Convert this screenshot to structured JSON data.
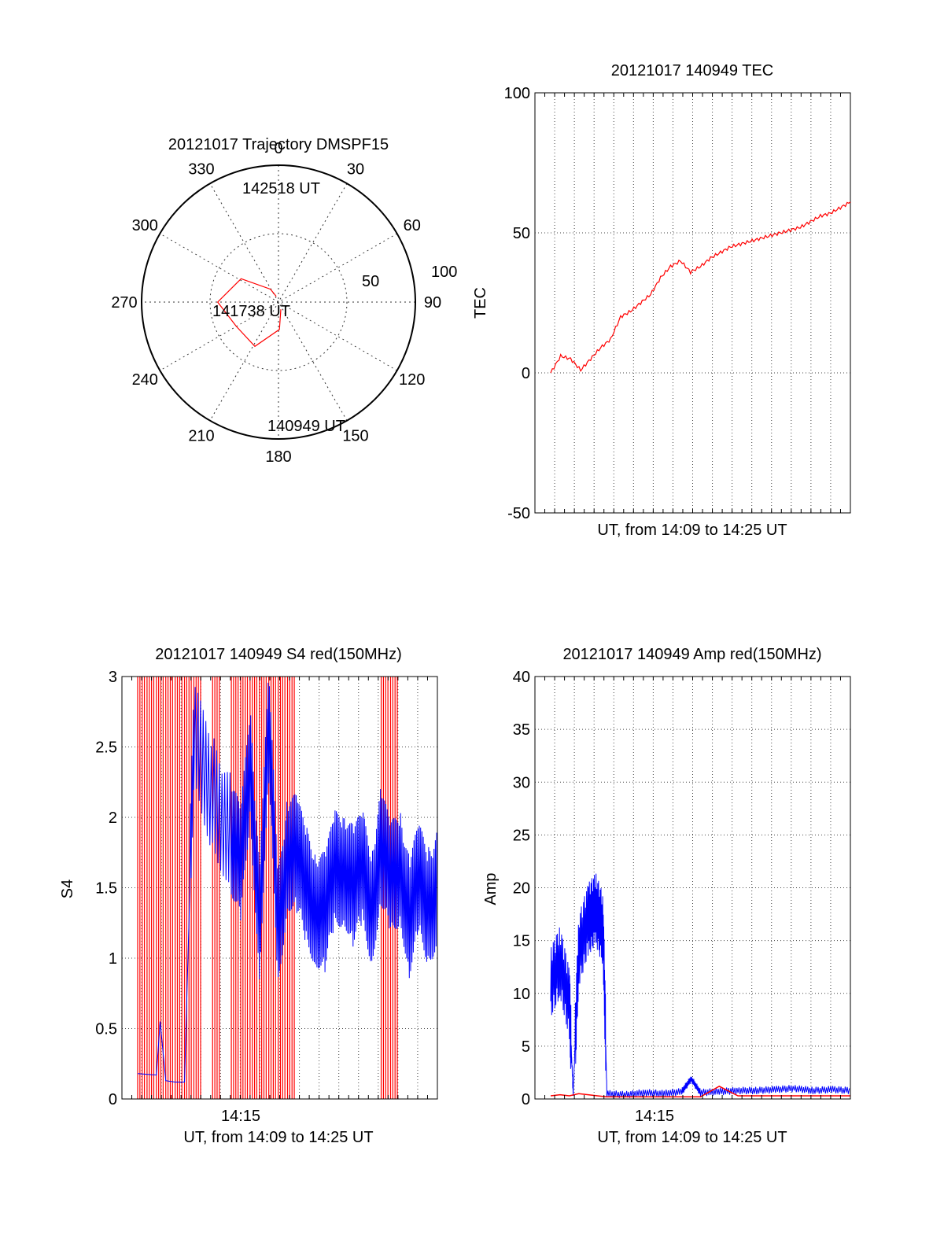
{
  "colors": {
    "red": "#ff0000",
    "blue": "#0000ff",
    "black": "#000000",
    "grid": "#333333"
  },
  "chart_data": [
    {
      "type": "polar",
      "title": "20121017 Trajectory DMSPF15",
      "angle_labels": [
        "0",
        "30",
        "60",
        "90",
        "120",
        "150",
        "180",
        "210",
        "240",
        "270",
        "300",
        "330"
      ],
      "radial_ticks": [
        "50",
        "100"
      ],
      "radial_range": [
        0,
        100
      ],
      "grid": true,
      "series": [
        {
          "color": "red",
          "points": [
            [
              162,
              85
            ],
            [
              178,
              72
            ],
            [
              208,
              57
            ],
            [
              240,
              58
            ],
            [
              270,
              50
            ],
            [
              302,
              61
            ],
            [
              328,
              80
            ],
            [
              339,
              86
            ]
          ]
        }
      ],
      "annotations": [
        "142518 UT",
        "141738 UT",
        "140949 UT"
      ]
    },
    {
      "type": "line",
      "title": "20121017 140949 TEC",
      "xlabel": "UT, from 14:09 to 14:25 UT",
      "ylabel": "TEC",
      "ylim": [
        -50,
        100
      ],
      "yticks": [
        "-50",
        "0",
        "50",
        "100"
      ],
      "grid": true,
      "series": [
        {
          "color": "red",
          "x": [
            0.0,
            0.5,
            1.0,
            1.5,
            2.0,
            2.5,
            3.0,
            3.5,
            4.0,
            4.5,
            5.0,
            5.5,
            6.0,
            6.5,
            7.0,
            7.5,
            8.0,
            8.5,
            9.0,
            9.5,
            10.0,
            10.5,
            11.0,
            11.5,
            12.0,
            12.5,
            13.0,
            13.5,
            14.0,
            14.5,
            15.0
          ],
          "y": [
            0,
            6,
            5,
            1,
            5,
            9,
            12,
            20,
            22,
            25,
            28,
            34,
            38,
            40,
            36,
            38,
            41,
            43,
            45,
            46,
            47,
            48,
            49,
            50,
            51,
            52,
            54,
            56,
            57,
            59,
            61
          ]
        }
      ]
    },
    {
      "type": "line",
      "title": "20121017 140949 S4 red(150MHz)",
      "xlabel": "UT, from 14:09 to 14:25 UT",
      "ylabel": "S4",
      "ylim": [
        0,
        3
      ],
      "yticks": [
        "0",
        "0.5",
        "1",
        "1.5",
        "2",
        "2.5",
        "3"
      ],
      "xticks": [
        "14:15"
      ],
      "grid": true,
      "series": [
        {
          "color": "red",
          "x": [
            0.0,
            0.5,
            1.0,
            1.5,
            2.0,
            2.5,
            3.0,
            4.0,
            5.0,
            5.5,
            6.0,
            6.5,
            7.0,
            7.5,
            8.0,
            13.0,
            13.5
          ],
          "y": [
            3,
            3,
            3,
            3,
            3,
            3,
            3,
            3,
            3,
            3,
            3,
            3,
            3,
            3,
            3,
            3,
            3
          ]
        },
        {
          "color": "blue",
          "x": [
            0.0,
            1.0,
            1.2,
            1.5,
            2.0,
            2.5,
            3.0,
            4.0,
            5.0,
            5.5,
            6.0,
            6.5,
            7.0,
            7.5,
            8.0,
            8.5,
            9.0,
            9.5,
            10.0,
            10.5,
            11.0,
            11.5,
            12.0,
            12.5,
            13.0,
            13.5,
            14.0,
            14.5,
            15.0,
            15.5,
            16.0
          ],
          "y": [
            0.18,
            0.17,
            0.55,
            0.13,
            0.12,
            0.12,
            2.5,
            2.2,
            1.9,
            1.6,
            2.4,
            1.3,
            2.6,
            1.2,
            1.8,
            1.7,
            1.5,
            1.4,
            1.3,
            1.6,
            1.7,
            1.5,
            1.6,
            1.4,
            1.8,
            1.5,
            1.7,
            1.3,
            1.5,
            1.4,
            1.5
          ]
        }
      ]
    },
    {
      "type": "line",
      "title": "20121017 140949 Amp red(150MHz)",
      "xlabel": "UT, from 14:09 to 14:25 UT",
      "ylabel": "Amp",
      "ylim": [
        0,
        40
      ],
      "yticks": [
        "0",
        "5",
        "10",
        "15",
        "20",
        "25",
        "30",
        "35",
        "40"
      ],
      "xticks": [
        "14:15"
      ],
      "grid": true,
      "series": [
        {
          "color": "red",
          "x": [
            0.0,
            0.5,
            1.0,
            1.5,
            2.0,
            2.5,
            3.0,
            4.0,
            6.0,
            8.0,
            9.0,
            10.0,
            12.0,
            14.0,
            16.0
          ],
          "y": [
            0.3,
            0.4,
            0.3,
            0.5,
            0.4,
            0.3,
            0.2,
            0.2,
            0.2,
            0.2,
            1.2,
            0.3,
            0.3,
            0.3,
            0.3
          ]
        },
        {
          "color": "blue",
          "x": [
            0.0,
            0.5,
            1.0,
            1.2,
            1.5,
            2.0,
            2.4,
            2.8,
            3.0,
            4.0,
            5.0,
            6.0,
            7.0,
            7.5,
            8.0,
            9.0,
            10.0,
            11.0,
            12.0,
            13.0,
            14.0,
            15.0,
            16.0
          ],
          "y": [
            11,
            13,
            9,
            0.5,
            14,
            17,
            18,
            16,
            0.5,
            0.4,
            0.6,
            0.5,
            0.7,
            1.9,
            0.6,
            0.7,
            0.8,
            0.8,
            0.9,
            1.0,
            0.8,
            0.9,
            0.8
          ]
        }
      ]
    }
  ]
}
